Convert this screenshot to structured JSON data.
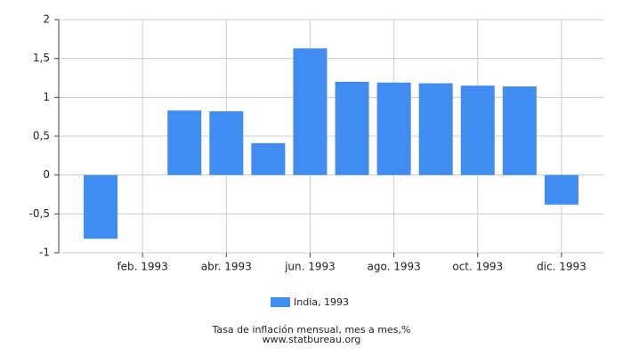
{
  "chart_data": {
    "type": "bar",
    "categories": [
      null,
      "feb. 1993",
      null,
      "abr. 1993",
      null,
      "jun. 1993",
      null,
      "ago. 1993",
      null,
      "oct. 1993",
      null,
      "dic. 1993"
    ],
    "series": [
      {
        "name": "India, 1993",
        "color": "#418cf0",
        "values": [
          -0.82,
          0,
          0.83,
          0.82,
          0.41,
          1.63,
          1.2,
          1.19,
          1.18,
          1.15,
          1.14,
          -0.38
        ]
      }
    ],
    "ylim": [
      -1,
      2
    ],
    "yticks": [
      -1,
      {
        "value": -0.5,
        "label": "-0,5"
      },
      0,
      {
        "value": 0.5,
        "label": "0,5"
      },
      1,
      {
        "value": 1.5,
        "label": "1,5"
      },
      2
    ],
    "grid": true,
    "legend": "bottom",
    "caption": "Tasa de inflación mensual, mes a mes,%",
    "source": "www.statbureau.org"
  }
}
